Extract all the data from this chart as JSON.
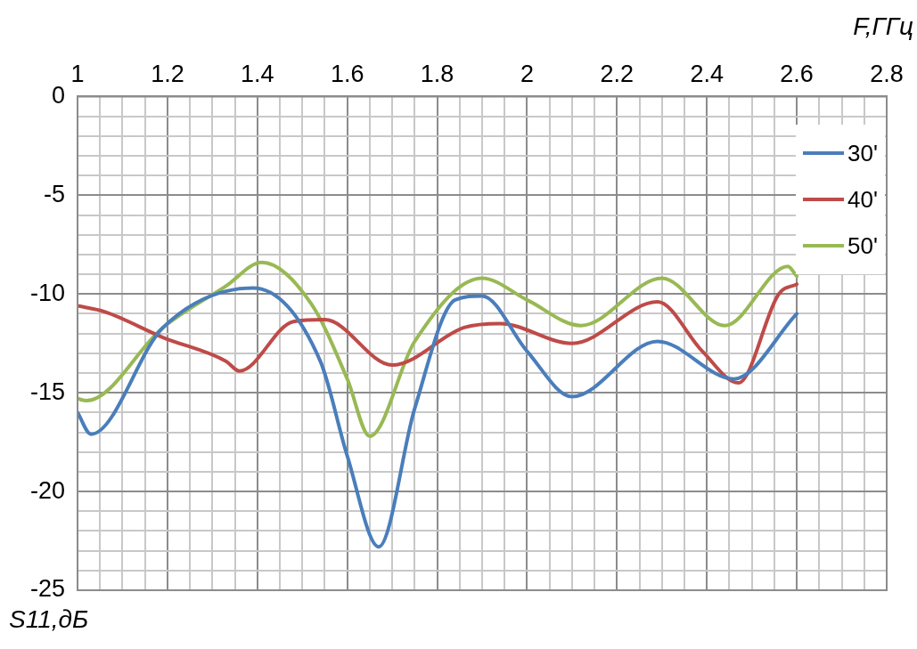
{
  "chart_data": {
    "type": "line",
    "xlabel": "F,ГГц",
    "ylabel": "S11,дБ",
    "xlim": [
      1,
      2.8
    ],
    "ylim": [
      -25,
      0
    ],
    "xticks": [
      1,
      {
        "value": 1.05,
        "label": null
      },
      {
        "value": 1.1,
        "label": null
      },
      {
        "value": 1.15,
        "label": null
      },
      1.2,
      {
        "value": 1.25,
        "label": null
      },
      {
        "value": 1.3,
        "label": null
      },
      {
        "value": 1.35,
        "label": null
      },
      1.4,
      {
        "value": 1.45,
        "label": null
      },
      {
        "value": 1.5,
        "label": null
      },
      {
        "value": 1.55,
        "label": null
      },
      1.6,
      {
        "value": 1.65,
        "label": null
      },
      {
        "value": 1.7,
        "label": null
      },
      {
        "value": 1.75,
        "label": null
      },
      1.8,
      {
        "value": 1.85,
        "label": null
      },
      {
        "value": 1.9,
        "label": null
      },
      {
        "value": 1.95,
        "label": null
      },
      2,
      {
        "value": 2.05,
        "label": null
      },
      {
        "value": 2.1,
        "label": null
      },
      {
        "value": 2.15,
        "label": null
      },
      2.2,
      {
        "value": 2.25,
        "label": null
      },
      {
        "value": 2.3,
        "label": null
      },
      {
        "value": 2.35,
        "label": null
      },
      2.4,
      {
        "value": 2.45,
        "label": null
      },
      {
        "value": 2.5,
        "label": null
      },
      {
        "value": 2.55,
        "label": null
      },
      2.6,
      {
        "value": 2.65,
        "label": null
      },
      {
        "value": 2.7,
        "label": null
      },
      {
        "value": 2.75,
        "label": null
      },
      2.8
    ],
    "yticks": [
      -25,
      {
        "value": -24,
        "label": null
      },
      {
        "value": -23,
        "label": null
      },
      {
        "value": -22,
        "label": null
      },
      {
        "value": -21,
        "label": null
      },
      -20,
      {
        "value": -19,
        "label": null
      },
      {
        "value": -18,
        "label": null
      },
      {
        "value": -17,
        "label": null
      },
      {
        "value": -16,
        "label": null
      },
      -15,
      {
        "value": -14,
        "label": null
      },
      {
        "value": -13,
        "label": null
      },
      {
        "value": -12,
        "label": null
      },
      {
        "value": -11,
        "label": null
      },
      -10,
      {
        "value": -9,
        "label": null
      },
      {
        "value": -8,
        "label": null
      },
      {
        "value": -7,
        "label": null
      },
      {
        "value": -6,
        "label": null
      },
      -5,
      {
        "value": -4,
        "label": null
      },
      {
        "value": -3,
        "label": null
      },
      {
        "value": -2,
        "label": null
      },
      {
        "value": -1,
        "label": null
      },
      0
    ],
    "grid": true,
    "legend": "top right",
    "marker": "none",
    "line_style": "solid",
    "series": [
      {
        "name": "30'",
        "color": "#4a7ebb",
        "x": [
          1,
          1.03,
          1.19,
          1.39,
          1.54,
          1.6,
          1.67,
          1.75,
          1.84,
          1.9,
          2,
          2.1,
          2.29,
          2.46,
          2.6
        ],
        "values": [
          -16,
          -17.1,
          -11.7,
          -9.7,
          -13.4,
          -18.2,
          -22.8,
          -15.8,
          -10.3,
          -10.1,
          -12.9,
          -15.2,
          -12.4,
          -14.3,
          -11
        ]
      },
      {
        "name": "40'",
        "color": "#be4b48",
        "x": [
          1,
          1.06,
          1.19,
          1.33,
          1.36,
          1.48,
          1.55,
          1.7,
          1.86,
          1.94,
          2.1,
          2.29,
          2.39,
          2.47,
          2.56,
          2.6
        ],
        "values": [
          -10.6,
          -10.9,
          -12.2,
          -13.4,
          -13.9,
          -11.4,
          -11.3,
          -13.6,
          -11.7,
          -11.5,
          -12.5,
          -10.4,
          -12.9,
          -14.5,
          -10,
          -9.5
        ]
      },
      {
        "name": "50'",
        "color": "#98b954",
        "x": [
          1,
          1.02,
          1.19,
          1.33,
          1.41,
          1.52,
          1.6,
          1.65,
          1.75,
          1.9,
          2,
          2.12,
          2.3,
          2.44,
          2.58,
          2.6
        ],
        "values": [
          -15.3,
          -15.4,
          -11.7,
          -9.6,
          -8.4,
          -10.5,
          -14.3,
          -17.2,
          -12.4,
          -9.2,
          -10.3,
          -11.6,
          -9.2,
          -11.6,
          -8.6,
          -9.1
        ]
      }
    ]
  }
}
